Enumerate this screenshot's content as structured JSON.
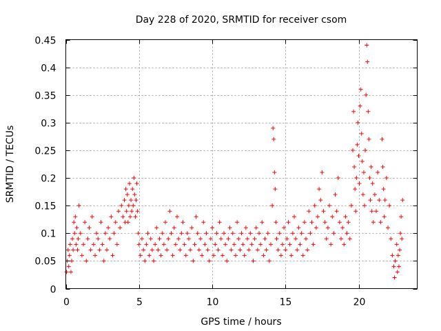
{
  "chart_data": {
    "type": "scatter",
    "title": "Day 228 of 2020, SRMTID for receiver csom",
    "xlabel": "GPS time / hours",
    "ylabel": "SRMTID / TECUs",
    "xlim": [
      0,
      24
    ],
    "ylim": [
      0,
      0.45
    ],
    "xticks": [
      0,
      5,
      10,
      15,
      20
    ],
    "xtick_labels": [
      "0",
      "5",
      "10",
      "15",
      "20"
    ],
    "yticks": [
      0,
      0.05,
      0.1,
      0.15,
      0.2,
      0.25,
      0.3,
      0.35,
      0.4,
      0.45
    ],
    "ytick_labels": [
      "0",
      "0.05",
      "0.1",
      "0.15",
      "0.2",
      "0.25",
      "0.3",
      "0.35",
      "0.4",
      "0.45"
    ],
    "grid": true,
    "marker": "+",
    "series": [
      {
        "name": "SRMTID",
        "color": "#ff0000",
        "points": [
          [
            0.05,
            0.03
          ],
          [
            0.1,
            0.05
          ],
          [
            0.15,
            0.07
          ],
          [
            0.2,
            0.04
          ],
          [
            0.25,
            0.06
          ],
          [
            0.3,
            0.08
          ],
          [
            0.35,
            0.03
          ],
          [
            0.4,
            0.05
          ],
          [
            0.45,
            0.09
          ],
          [
            0.5,
            0.07
          ],
          [
            0.55,
            0.12
          ],
          [
            0.6,
            0.1
          ],
          [
            0.65,
            0.13
          ],
          [
            0.7,
            0.08
          ],
          [
            0.75,
            0.11
          ],
          [
            0.8,
            0.07
          ],
          [
            0.85,
            0.09
          ],
          [
            0.9,
            0.15
          ],
          [
            1.0,
            0.1
          ],
          [
            1.1,
            0.06
          ],
          [
            1.2,
            0.08
          ],
          [
            1.3,
            0.12
          ],
          [
            1.4,
            0.05
          ],
          [
            1.5,
            0.09
          ],
          [
            1.6,
            0.11
          ],
          [
            1.7,
            0.07
          ],
          [
            1.8,
            0.13
          ],
          [
            1.9,
            0.08
          ],
          [
            2.0,
            0.06
          ],
          [
            2.1,
            0.1
          ],
          [
            2.2,
            0.09
          ],
          [
            2.3,
            0.07
          ],
          [
            2.4,
            0.12
          ],
          [
            2.5,
            0.08
          ],
          [
            2.6,
            0.05
          ],
          [
            2.7,
            0.1
          ],
          [
            2.8,
            0.07
          ],
          [
            2.9,
            0.11
          ],
          [
            3.0,
            0.09
          ],
          [
            3.1,
            0.13
          ],
          [
            3.2,
            0.06
          ],
          [
            3.3,
            0.1
          ],
          [
            3.4,
            0.12
          ],
          [
            3.5,
            0.08
          ],
          [
            3.6,
            0.14
          ],
          [
            3.7,
            0.11
          ],
          [
            3.8,
            0.15
          ],
          [
            3.9,
            0.13
          ],
          [
            4.0,
            0.16
          ],
          [
            4.05,
            0.12
          ],
          [
            4.1,
            0.18
          ],
          [
            4.15,
            0.14
          ],
          [
            4.2,
            0.17
          ],
          [
            4.25,
            0.12
          ],
          [
            4.3,
            0.15
          ],
          [
            4.35,
            0.19
          ],
          [
            4.4,
            0.13
          ],
          [
            4.45,
            0.16
          ],
          [
            4.5,
            0.14
          ],
          [
            4.55,
            0.18
          ],
          [
            4.6,
            0.15
          ],
          [
            4.65,
            0.2
          ],
          [
            4.7,
            0.17
          ],
          [
            4.75,
            0.13
          ],
          [
            4.8,
            0.16
          ],
          [
            4.85,
            0.19
          ],
          [
            4.9,
            0.14
          ],
          [
            4.95,
            0.1
          ],
          [
            5.0,
            0.08
          ],
          [
            5.1,
            0.06
          ],
          [
            5.2,
            0.09
          ],
          [
            5.3,
            0.07
          ],
          [
            5.4,
            0.05
          ],
          [
            5.5,
            0.08
          ],
          [
            5.6,
            0.1
          ],
          [
            5.7,
            0.06
          ],
          [
            5.8,
            0.09
          ],
          [
            5.9,
            0.07
          ],
          [
            6.0,
            0.05
          ],
          [
            6.1,
            0.08
          ],
          [
            6.2,
            0.11
          ],
          [
            6.3,
            0.07
          ],
          [
            6.4,
            0.09
          ],
          [
            6.5,
            0.06
          ],
          [
            6.6,
            0.1
          ],
          [
            6.7,
            0.08
          ],
          [
            6.8,
            0.12
          ],
          [
            6.9,
            0.07
          ],
          [
            7.0,
            0.09
          ],
          [
            7.1,
            0.14
          ],
          [
            7.2,
            0.1
          ],
          [
            7.3,
            0.06
          ],
          [
            7.4,
            0.11
          ],
          [
            7.5,
            0.08
          ],
          [
            7.6,
            0.13
          ],
          [
            7.7,
            0.09
          ],
          [
            7.8,
            0.07
          ],
          [
            7.9,
            0.1
          ],
          [
            8.0,
            0.12
          ],
          [
            8.1,
            0.08
          ],
          [
            8.2,
            0.06
          ],
          [
            8.3,
            0.1
          ],
          [
            8.4,
            0.09
          ],
          [
            8.5,
            0.07
          ],
          [
            8.6,
            0.11
          ],
          [
            8.7,
            0.05
          ],
          [
            8.8,
            0.08
          ],
          [
            8.9,
            0.13
          ],
          [
            9.0,
            0.1
          ],
          [
            9.1,
            0.07
          ],
          [
            9.2,
            0.09
          ],
          [
            9.3,
            0.06
          ],
          [
            9.4,
            0.12
          ],
          [
            9.5,
            0.08
          ],
          [
            9.6,
            0.1
          ],
          [
            9.7,
            0.07
          ],
          [
            9.8,
            0.05
          ],
          [
            9.9,
            0.09
          ],
          [
            10.0,
            0.11
          ],
          [
            10.1,
            0.06
          ],
          [
            10.2,
            0.08
          ],
          [
            10.3,
            0.1
          ],
          [
            10.4,
            0.07
          ],
          [
            10.5,
            0.12
          ],
          [
            10.6,
            0.09
          ],
          [
            10.7,
            0.06
          ],
          [
            10.8,
            0.1
          ],
          [
            10.9,
            0.08
          ],
          [
            11.0,
            0.05
          ],
          [
            11.1,
            0.09
          ],
          [
            11.2,
            0.11
          ],
          [
            11.3,
            0.07
          ],
          [
            11.4,
            0.1
          ],
          [
            11.5,
            0.08
          ],
          [
            11.6,
            0.06
          ],
          [
            11.7,
            0.12
          ],
          [
            11.8,
            0.09
          ],
          [
            11.9,
            0.07
          ],
          [
            12.0,
            0.1
          ],
          [
            12.1,
            0.08
          ],
          [
            12.2,
            0.06
          ],
          [
            12.3,
            0.11
          ],
          [
            12.4,
            0.09
          ],
          [
            12.5,
            0.07
          ],
          [
            12.6,
            0.1
          ],
          [
            12.7,
            0.08
          ],
          [
            12.8,
            0.05
          ],
          [
            12.9,
            0.09
          ],
          [
            13.0,
            0.11
          ],
          [
            13.1,
            0.07
          ],
          [
            13.2,
            0.1
          ],
          [
            13.3,
            0.08
          ],
          [
            13.4,
            0.12
          ],
          [
            13.5,
            0.06
          ],
          [
            13.6,
            0.09
          ],
          [
            13.7,
            0.07
          ],
          [
            13.8,
            0.1
          ],
          [
            13.9,
            0.05
          ],
          [
            14.0,
            0.08
          ],
          [
            14.1,
            0.15
          ],
          [
            14.15,
            0.29
          ],
          [
            14.2,
            0.27
          ],
          [
            14.25,
            0.21
          ],
          [
            14.3,
            0.18
          ],
          [
            14.35,
            0.12
          ],
          [
            14.4,
            0.09
          ],
          [
            14.5,
            0.07
          ],
          [
            14.6,
            0.1
          ],
          [
            14.7,
            0.06
          ],
          [
            14.8,
            0.08
          ],
          [
            14.9,
            0.11
          ],
          [
            15.0,
            0.07
          ],
          [
            15.1,
            0.09
          ],
          [
            15.2,
            0.12
          ],
          [
            15.3,
            0.08
          ],
          [
            15.4,
            0.06
          ],
          [
            15.5,
            0.1
          ],
          [
            15.6,
            0.13
          ],
          [
            15.7,
            0.09
          ],
          [
            15.8,
            0.07
          ],
          [
            15.9,
            0.11
          ],
          [
            16.0,
            0.08
          ],
          [
            16.1,
            0.1
          ],
          [
            16.2,
            0.06
          ],
          [
            16.3,
            0.12
          ],
          [
            16.4,
            0.09
          ],
          [
            16.5,
            0.07
          ],
          [
            16.6,
            0.14
          ],
          [
            16.7,
            0.1
          ],
          [
            16.8,
            0.12
          ],
          [
            16.9,
            0.08
          ],
          [
            17.0,
            0.15
          ],
          [
            17.1,
            0.11
          ],
          [
            17.2,
            0.13
          ],
          [
            17.3,
            0.18
          ],
          [
            17.4,
            0.16
          ],
          [
            17.5,
            0.21
          ],
          [
            17.6,
            0.14
          ],
          [
            17.7,
            0.12
          ],
          [
            17.8,
            0.09
          ],
          [
            17.9,
            0.11
          ],
          [
            18.0,
            0.15
          ],
          [
            18.1,
            0.08
          ],
          [
            18.2,
            0.13
          ],
          [
            18.3,
            0.1
          ],
          [
            18.4,
            0.17
          ],
          [
            18.5,
            0.14
          ],
          [
            18.6,
            0.2
          ],
          [
            18.7,
            0.12
          ],
          [
            18.8,
            0.09
          ],
          [
            18.9,
            0.11
          ],
          [
            19.0,
            0.08
          ],
          [
            19.1,
            0.13
          ],
          [
            19.2,
            0.1
          ],
          [
            19.3,
            0.12
          ],
          [
            19.4,
            0.09
          ],
          [
            19.5,
            0.15
          ],
          [
            19.6,
            0.25
          ],
          [
            19.65,
            0.32
          ],
          [
            19.7,
            0.22
          ],
          [
            19.75,
            0.18
          ],
          [
            19.8,
            0.14
          ],
          [
            19.85,
            0.2
          ],
          [
            19.9,
            0.26
          ],
          [
            19.95,
            0.3
          ],
          [
            20.0,
            0.24
          ],
          [
            20.05,
            0.19
          ],
          [
            20.1,
            0.33
          ],
          [
            20.15,
            0.36
          ],
          [
            20.2,
            0.28
          ],
          [
            20.25,
            0.23
          ],
          [
            20.3,
            0.17
          ],
          [
            20.35,
            0.21
          ],
          [
            20.4,
            0.15
          ],
          [
            20.45,
            0.25
          ],
          [
            20.5,
            0.35
          ],
          [
            20.55,
            0.44
          ],
          [
            20.6,
            0.41
          ],
          [
            20.65,
            0.32
          ],
          [
            20.7,
            0.27
          ],
          [
            20.75,
            0.2
          ],
          [
            20.8,
            0.16
          ],
          [
            20.85,
            0.22
          ],
          [
            20.9,
            0.14
          ],
          [
            20.95,
            0.19
          ],
          [
            21.0,
            0.12
          ],
          [
            21.1,
            0.17
          ],
          [
            21.2,
            0.14
          ],
          [
            21.3,
            0.21
          ],
          [
            21.4,
            0.16
          ],
          [
            21.5,
            0.12
          ],
          [
            21.6,
            0.27
          ],
          [
            21.65,
            0.22
          ],
          [
            21.7,
            0.18
          ],
          [
            21.75,
            0.13
          ],
          [
            21.8,
            0.16
          ],
          [
            21.9,
            0.2
          ],
          [
            22.0,
            0.11
          ],
          [
            22.1,
            0.15
          ],
          [
            22.2,
            0.09
          ],
          [
            22.3,
            0.06
          ],
          [
            22.4,
            0.04
          ],
          [
            22.45,
            0.02
          ],
          [
            22.5,
            0.05
          ],
          [
            22.6,
            0.08
          ],
          [
            22.65,
            0.03
          ],
          [
            22.7,
            0.06
          ],
          [
            22.75,
            0.04
          ],
          [
            22.8,
            0.07
          ],
          [
            22.85,
            0.1
          ],
          [
            22.9,
            0.13
          ],
          [
            22.95,
            0.09
          ],
          [
            23.0,
            0.16
          ]
        ]
      }
    ]
  }
}
